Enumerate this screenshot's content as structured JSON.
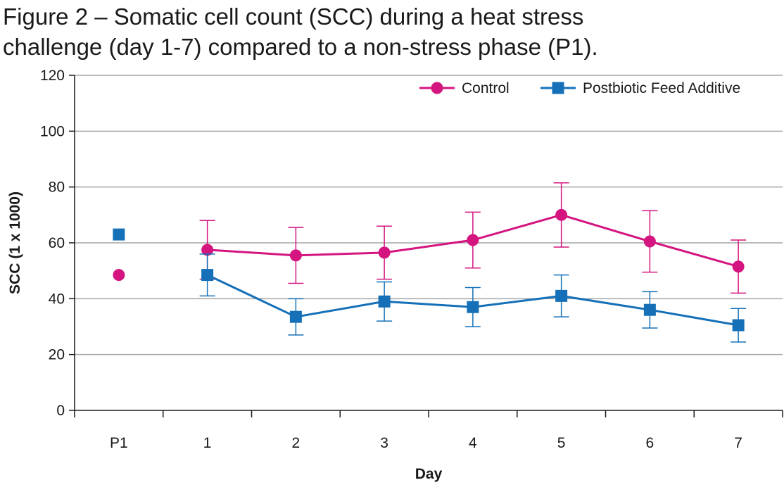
{
  "figure": {
    "title_line1": "Figure 2 – Somatic cell count (SCC) during a heat stress",
    "title_line2": "challenge (day 1-7) compared to a non-stress phase (P1)."
  },
  "chart_data": {
    "type": "line",
    "categories": [
      "P1",
      "1",
      "2",
      "3",
      "4",
      "5",
      "6",
      "7"
    ],
    "xlabel": "Day",
    "ylabel": "SCC (1 x 1000)",
    "ylim": [
      0,
      120
    ],
    "yticks": [
      0,
      20,
      40,
      60,
      80,
      100,
      120
    ],
    "grid": true,
    "legend": "top-right",
    "series": [
      {
        "name": "Control",
        "color": "#d4147f",
        "marker": "circle",
        "values": [
          48.5,
          57.5,
          55.5,
          56.5,
          61,
          70,
          60.5,
          51.5
        ],
        "error": [
          null,
          10.5,
          10,
          9.5,
          10,
          11.5,
          11,
          9.5
        ],
        "connected_from": 1
      },
      {
        "name": "Postbiotic Feed Additive",
        "color": "#1570b8",
        "marker": "square",
        "values": [
          63,
          48.5,
          33.5,
          39,
          37,
          41,
          36,
          30.5
        ],
        "error": [
          null,
          7.5,
          6.5,
          7,
          7,
          7.5,
          6.5,
          6
        ],
        "connected_from": 1
      }
    ]
  }
}
